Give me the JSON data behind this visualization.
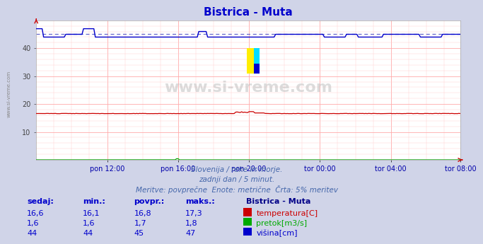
{
  "title": "Bistrica - Muta",
  "title_color": "#0000cc",
  "bg_color": "#d0d4e8",
  "plot_bg_color": "#ffffff",
  "grid_color_major": "#ffaaaa",
  "grid_color_minor": "#ffcccc",
  "ylim": [
    0,
    50
  ],
  "yticks": [
    10,
    20,
    30,
    40
  ],
  "xlabel_color": "#0000aa",
  "xtick_labels": [
    "pon 12:00",
    "pon 16:00",
    "pon 20:00",
    "tor 00:00",
    "tor 04:00",
    "tor 08:00"
  ],
  "subtitle1": "Slovenija / reke in morje.",
  "subtitle2": "zadnji dan / 5 minut.",
  "subtitle3": "Meritve: povprečne  Enote: metrične  Črta: 5% meritev",
  "subtitle_color": "#4466aa",
  "watermark": "www.si-vreme.com",
  "watermark_color": "#bbbbbb",
  "legend_title": "Bistrica - Muta",
  "legend_title_color": "#000088",
  "legend_items": [
    {
      "label": "temperatura[C]",
      "color": "#cc0000"
    },
    {
      "label": "pretok[m3/s]",
      "color": "#00aa00"
    },
    {
      "label": "višina[cm]",
      "color": "#0000cc"
    }
  ],
  "table_headers": [
    "sedaj:",
    "min.:",
    "povpr.:",
    "maks.:"
  ],
  "table_data": [
    [
      "16,6",
      "16,1",
      "16,8",
      "17,3"
    ],
    [
      "1,6",
      "1,6",
      "1,7",
      "1,8"
    ],
    [
      "44",
      "44",
      "45",
      "47"
    ]
  ],
  "table_color": "#0000cc",
  "n_points": 288,
  "temp_color": "#cc0000",
  "pretok_color": "#00aa00",
  "visina_color": "#0000cc",
  "avg_line_color": "#6666cc",
  "arrow_color": "#cc0000",
  "sidebar_text": "www.si-vreme.com",
  "sidebar_color": "#888888"
}
